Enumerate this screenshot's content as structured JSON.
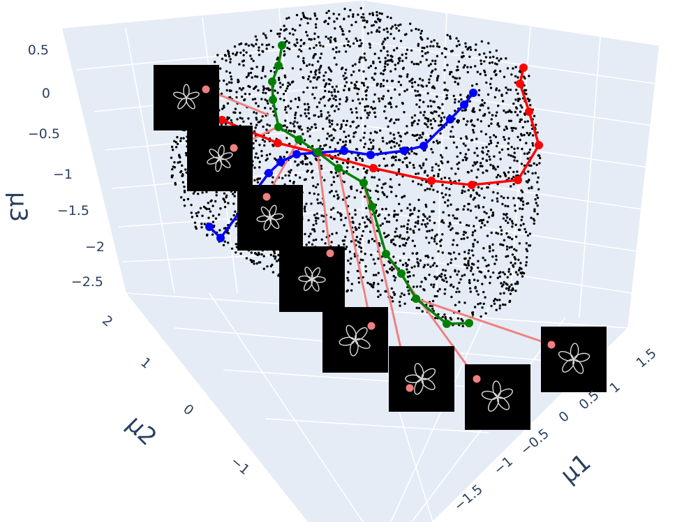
{
  "chart_data": {
    "type": "scatter3d",
    "axes": {
      "x": {
        "title": "μ1",
        "ticks": [
          "−1.5",
          "−1",
          "−0.5",
          "0",
          "0.5",
          "1",
          "1.5"
        ]
      },
      "y": {
        "title": "μ2",
        "ticks": [
          "−1",
          "0",
          "1",
          "2"
        ]
      },
      "z": {
        "title": "μ3",
        "ticks": [
          "−2.5",
          "−2",
          "−1.5",
          "−1",
          "−0.5",
          "0",
          "0.5"
        ]
      }
    },
    "colors": {
      "background": "#e5ecf6",
      "grid": "#ffffff",
      "points": "#000000",
      "red": "#ff0000",
      "blue": "#0000ff",
      "green": "#008000",
      "connector": "#f08080",
      "thumbnail": "#000000",
      "thumbnail_stroke": "#dddddd"
    },
    "point_cloud": {
      "approx_count": 3000
    },
    "series": [
      {
        "color": "red",
        "num_points": 11
      },
      {
        "color": "blue",
        "num_points": 13
      },
      {
        "color": "green",
        "num_points": 15
      }
    ],
    "thumbnails": [
      {
        "icon": "flower-icon",
        "petals": 5
      },
      {
        "icon": "flower-icon",
        "petals": 6
      },
      {
        "icon": "flower-icon",
        "petals": 6
      },
      {
        "icon": "flower-icon",
        "petals": 6
      },
      {
        "icon": "flower-icon",
        "petals": 5
      },
      {
        "icon": "flower-icon",
        "petals": 5
      },
      {
        "icon": "flower-icon",
        "petals": 5
      },
      {
        "icon": "flower-icon",
        "petals": 5
      }
    ]
  }
}
